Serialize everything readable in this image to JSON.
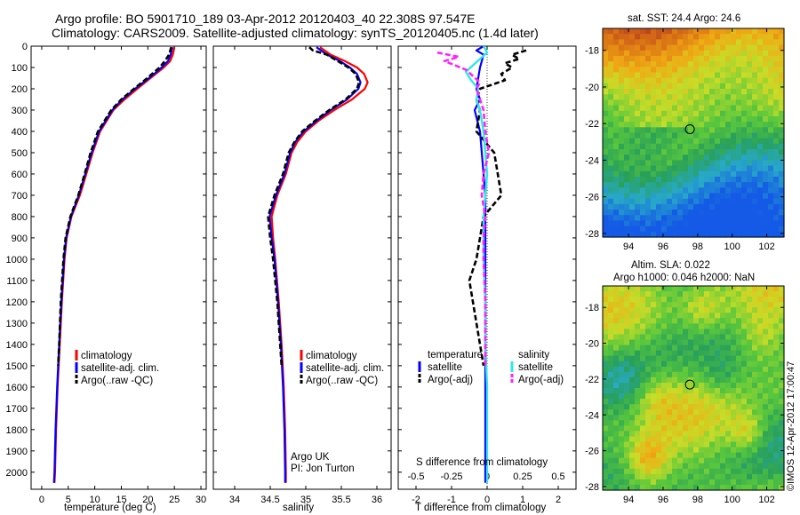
{
  "figure": {
    "title_line1": "Argo profile: BO 5901710_189 03-Apr-2012 20120403_40 22.308S 97.547E",
    "title_line2": "Climatology: CARS2009. Satellite-adjusted climatology: synTS_20120405.nc (1.4d later)",
    "credit_line1": "Argo UK",
    "credit_line2": "PI: Jon Turton",
    "footer": "©IMOS 12-Apr-2012 17:00:47"
  },
  "colors": {
    "climatology": "#ff0000",
    "satellite": "#0000ff",
    "argo": "#000000",
    "satellite_salinity": "#33e6e6",
    "argo_salinity": "#ff22ff"
  },
  "chart_data": [
    {
      "type": "line",
      "name": "temperature-profile",
      "xlabel": "temperature (deg C)",
      "ylabel": "",
      "xlim": [
        -2,
        31
      ],
      "ylim": [
        2080,
        0
      ],
      "xticks": [
        0,
        5,
        10,
        15,
        20,
        25,
        30
      ],
      "yticks": [
        0,
        100,
        200,
        300,
        400,
        500,
        600,
        700,
        800,
        900,
        1000,
        1100,
        1200,
        1300,
        1400,
        1500,
        1600,
        1700,
        1800,
        1900,
        2000
      ],
      "legend": [
        "climatology",
        "satellite-adj. clim.",
        "Argo(..raw -QC)"
      ],
      "legend_position": "lower-center",
      "series": [
        {
          "name": "climatology",
          "depth": [
            5,
            40,
            70,
            100,
            130,
            160,
            200,
            250,
            300,
            400,
            500,
            600,
            700,
            800,
            900,
            1000,
            1200,
            1400,
            1600,
            1800,
            2000,
            2050
          ],
          "values": [
            25,
            24.7,
            24.2,
            23.0,
            21.5,
            20.0,
            18.0,
            15.6,
            13.5,
            11.0,
            9.6,
            8.4,
            7.2,
            5.6,
            4.7,
            4.3,
            3.8,
            3.4,
            3.0,
            2.7,
            2.5,
            2.4
          ]
        },
        {
          "name": "satellite-adj. clim.",
          "depth": [
            5,
            40,
            70,
            100,
            130,
            160,
            200,
            250,
            300,
            400,
            500,
            600,
            700,
            800,
            900,
            1000,
            1200,
            1400,
            1600,
            1800,
            2000,
            2050
          ],
          "values": [
            24.6,
            24.3,
            23.8,
            22.6,
            21.2,
            19.7,
            17.6,
            15.2,
            13.3,
            10.8,
            9.4,
            8.2,
            7.0,
            5.5,
            4.6,
            4.2,
            3.7,
            3.3,
            2.9,
            2.6,
            2.4,
            2.3
          ]
        },
        {
          "name": "Argo(..raw -QC)",
          "depth": [
            5,
            40,
            70,
            100,
            130,
            160,
            200,
            250,
            300,
            400,
            500,
            600,
            700,
            800,
            900,
            1000,
            1200,
            1400,
            1500
          ],
          "values": [
            24.4,
            24.0,
            23.2,
            22.2,
            20.8,
            19.4,
            17.4,
            15.0,
            13.1,
            10.6,
            9.2,
            8.1,
            6.9,
            5.4,
            4.5,
            4.1,
            3.6,
            3.3,
            3.1
          ]
        }
      ]
    },
    {
      "type": "line",
      "name": "salinity-profile",
      "xlabel": "salinity",
      "ylabel": "",
      "xlim": [
        33.7,
        36.2
      ],
      "ylim": [
        2080,
        0
      ],
      "xticks": [
        34,
        34.5,
        35,
        35.5,
        36
      ],
      "legend": [
        "climatology",
        "satellite-adj. clim.",
        "Argo(..raw -QC)"
      ],
      "legend_position": "lower-center",
      "series": [
        {
          "name": "climatology",
          "depth": [
            5,
            40,
            70,
            100,
            130,
            170,
            200,
            250,
            300,
            350,
            400,
            450,
            500,
            600,
            700,
            800,
            900,
            1000,
            1200,
            1400,
            1600,
            1800,
            2000,
            2050
          ],
          "values": [
            35.2,
            35.35,
            35.55,
            35.72,
            35.82,
            35.87,
            35.83,
            35.65,
            35.4,
            35.18,
            35.0,
            34.88,
            34.8,
            34.72,
            34.6,
            34.52,
            34.54,
            34.57,
            34.62,
            34.66,
            34.69,
            34.71,
            34.72,
            34.72
          ]
        },
        {
          "name": "satellite-adj. clim.",
          "depth": [
            5,
            40,
            70,
            100,
            130,
            170,
            200,
            250,
            300,
            350,
            400,
            450,
            500,
            600,
            700,
            800,
            900,
            1000,
            1200,
            1400,
            1600,
            1800,
            2000,
            2050
          ],
          "values": [
            35.15,
            35.3,
            35.48,
            35.62,
            35.72,
            35.77,
            35.74,
            35.58,
            35.35,
            35.15,
            34.97,
            34.85,
            34.78,
            34.7,
            34.58,
            34.49,
            34.52,
            34.56,
            34.61,
            34.65,
            34.68,
            34.7,
            34.71,
            34.71
          ]
        },
        {
          "name": "Argo(..raw -QC)",
          "depth": [
            5,
            20,
            40,
            70,
            100,
            130,
            170,
            200,
            250,
            300,
            350,
            400,
            450,
            500,
            600,
            700,
            800,
            900,
            1000,
            1200,
            1400,
            1500
          ],
          "values": [
            35.05,
            35.1,
            35.3,
            35.45,
            35.6,
            35.7,
            35.75,
            35.72,
            35.56,
            35.33,
            35.13,
            34.95,
            34.84,
            34.76,
            34.68,
            34.56,
            34.47,
            34.5,
            34.54,
            34.6,
            34.64,
            34.66
          ]
        }
      ]
    },
    {
      "type": "line",
      "name": "difference-profile",
      "xlabel": "T difference from climatology",
      "xlabel_top": "S difference from climatology",
      "ylabel": "",
      "xlim": [
        -2.5,
        2.5
      ],
      "ylim": [
        2080,
        0
      ],
      "xticks": [
        -2,
        -1,
        0,
        1,
        2
      ],
      "xtick_labels": [
        "-2",
        "-1",
        "0",
        "1",
        "2"
      ],
      "xticks_secondary": [
        -2,
        -1,
        0,
        1,
        2
      ],
      "xtick_labels_secondary": [
        "-0.5",
        "-0.25",
        "0",
        "0.25",
        "0.5"
      ],
      "legend_headers": [
        "temperature",
        "salinity"
      ],
      "legend": [
        "satellite",
        "Argo(-adj)",
        "satellite",
        "Argo(-adj)"
      ],
      "legend_position": "lower-center",
      "series": [
        {
          "name": "temperature satellite",
          "depth": [
            0,
            20,
            40,
            70,
            100,
            150,
            200,
            250,
            300,
            400,
            500,
            600,
            700,
            800,
            900,
            1000,
            1200,
            1500,
            2000,
            2050
          ],
          "values": [
            -0.1,
            -0.3,
            -0.1,
            -0.15,
            -0.2,
            -0.25,
            -0.3,
            -0.2,
            -0.35,
            -0.2,
            -0.15,
            -0.1,
            -0.05,
            -0.05,
            -0.05,
            -0.05,
            -0.05,
            -0.05,
            -0.05,
            -0.05
          ]
        },
        {
          "name": "temperature Argo(-adj)",
          "depth": [
            20,
            40,
            60,
            80,
            100,
            130,
            160,
            200,
            250,
            300,
            400,
            500,
            600,
            700,
            800,
            900,
            1000,
            1100,
            1200,
            1300,
            1400,
            1500
          ],
          "values": [
            1.1,
            0.7,
            0.9,
            0.5,
            0.7,
            0.4,
            0.5,
            -0.2,
            -0.3,
            -0.2,
            -0.3,
            0.2,
            0.3,
            0.4,
            -0.1,
            -0.2,
            -0.3,
            -0.5,
            -0.4,
            -0.3,
            -0.2,
            -0.1
          ]
        },
        {
          "name": "salinity satellite",
          "depth": [
            0,
            30,
            60,
            90,
            120,
            160,
            200,
            250,
            300,
            400,
            500,
            600,
            700,
            800,
            1000,
            1200,
            1400,
            1600,
            1800,
            2000,
            2050
          ],
          "values": [
            -0.1,
            0.0,
            -0.2,
            -0.4,
            -0.6,
            -0.45,
            -0.25,
            -0.3,
            -0.2,
            -0.1,
            -0.05,
            0.0,
            -0.05,
            -0.1,
            -0.1,
            -0.05,
            -0.05,
            0.0,
            0.0,
            0.0,
            0.0
          ]
        },
        {
          "name": "salinity Argo(-adj)",
          "depth": [
            30,
            50,
            70,
            90,
            110,
            140,
            170,
            200,
            250,
            300,
            400,
            500,
            600,
            700,
            800,
            900,
            1000,
            1200,
            1500
          ],
          "values": [
            -1.4,
            -0.8,
            -1.2,
            -0.9,
            -0.6,
            -0.4,
            -0.2,
            -0.3,
            -0.2,
            -0.1,
            -0.05,
            0.05,
            -0.1,
            -0.15,
            -0.05,
            -0.1,
            -0.1,
            -0.05,
            -0.05
          ]
        }
      ]
    },
    {
      "type": "heatmap",
      "name": "sst-map",
      "title": "sat. SST: 24.4 Argo: 24.6",
      "xlim": [
        92.5,
        103
      ],
      "ylim": [
        -28.2,
        -16.8
      ],
      "xticks": [
        94,
        96,
        98,
        100,
        102
      ],
      "yticks": [
        -18,
        -20,
        -22,
        -24,
        -26,
        -28
      ],
      "marker": {
        "lon": 97.547,
        "lat": -22.308
      }
    },
    {
      "type": "heatmap",
      "name": "sla-map",
      "title_line1": "Altim. SLA: 0.022",
      "title_line2": "Argo h1000: 0.046 h2000: NaN",
      "xlim": [
        92.5,
        103
      ],
      "ylim": [
        -28.2,
        -16.8
      ],
      "xticks": [
        94,
        96,
        98,
        100,
        102
      ],
      "yticks": [
        -18,
        -20,
        -22,
        -24,
        -26,
        -28
      ],
      "marker": {
        "lon": 97.547,
        "lat": -22.308
      }
    }
  ]
}
